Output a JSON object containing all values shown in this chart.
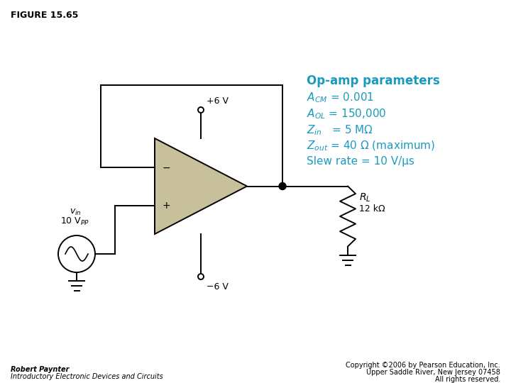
{
  "figure_title": "FIGURE 15.65",
  "bg_color": "#ffffff",
  "circuit_color": "#000000",
  "opamp_fill": "#c8c09a",
  "opamp_stroke": "#000000",
  "text_color_cyan": "#1a9abf",
  "text_color_black": "#000000",
  "footer_left1": "Robert Paynter",
  "footer_left2": "Introductory Electronic Devices and Circuits",
  "footer_right1": "Copyright ©2006 by Pearson Education, Inc.",
  "footer_right2": "Upper Saddle River, New Jersey 07458",
  "footer_right3": "All rights reserved."
}
